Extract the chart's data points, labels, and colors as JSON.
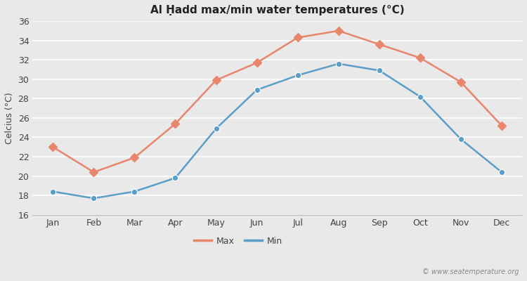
{
  "title": "Al Ḥadd max/min water temperatures (°C)",
  "ylabel": "Celcius (°C)",
  "months": [
    "Jan",
    "Feb",
    "Mar",
    "Apr",
    "May",
    "Jun",
    "Jul",
    "Aug",
    "Sep",
    "Oct",
    "Nov",
    "Dec"
  ],
  "max_temps": [
    23.0,
    20.4,
    21.9,
    25.4,
    29.9,
    31.7,
    34.3,
    35.0,
    33.6,
    32.2,
    29.7,
    25.2
  ],
  "min_temps": [
    18.4,
    17.7,
    18.4,
    19.8,
    24.9,
    28.9,
    30.4,
    31.6,
    30.9,
    28.2,
    23.8,
    20.4
  ],
  "max_color": "#e8856a",
  "min_color": "#5b9ec9",
  "background_color": "#e9e9e9",
  "ylim": [
    16,
    36
  ],
  "yticks": [
    16,
    18,
    20,
    22,
    24,
    26,
    28,
    30,
    32,
    34,
    36
  ],
  "grid_color": "#ffffff",
  "watermark": "© www.seatemperature.org",
  "legend_labels": [
    "Max",
    "Min"
  ],
  "marker_size": 6,
  "line_width": 1.8
}
